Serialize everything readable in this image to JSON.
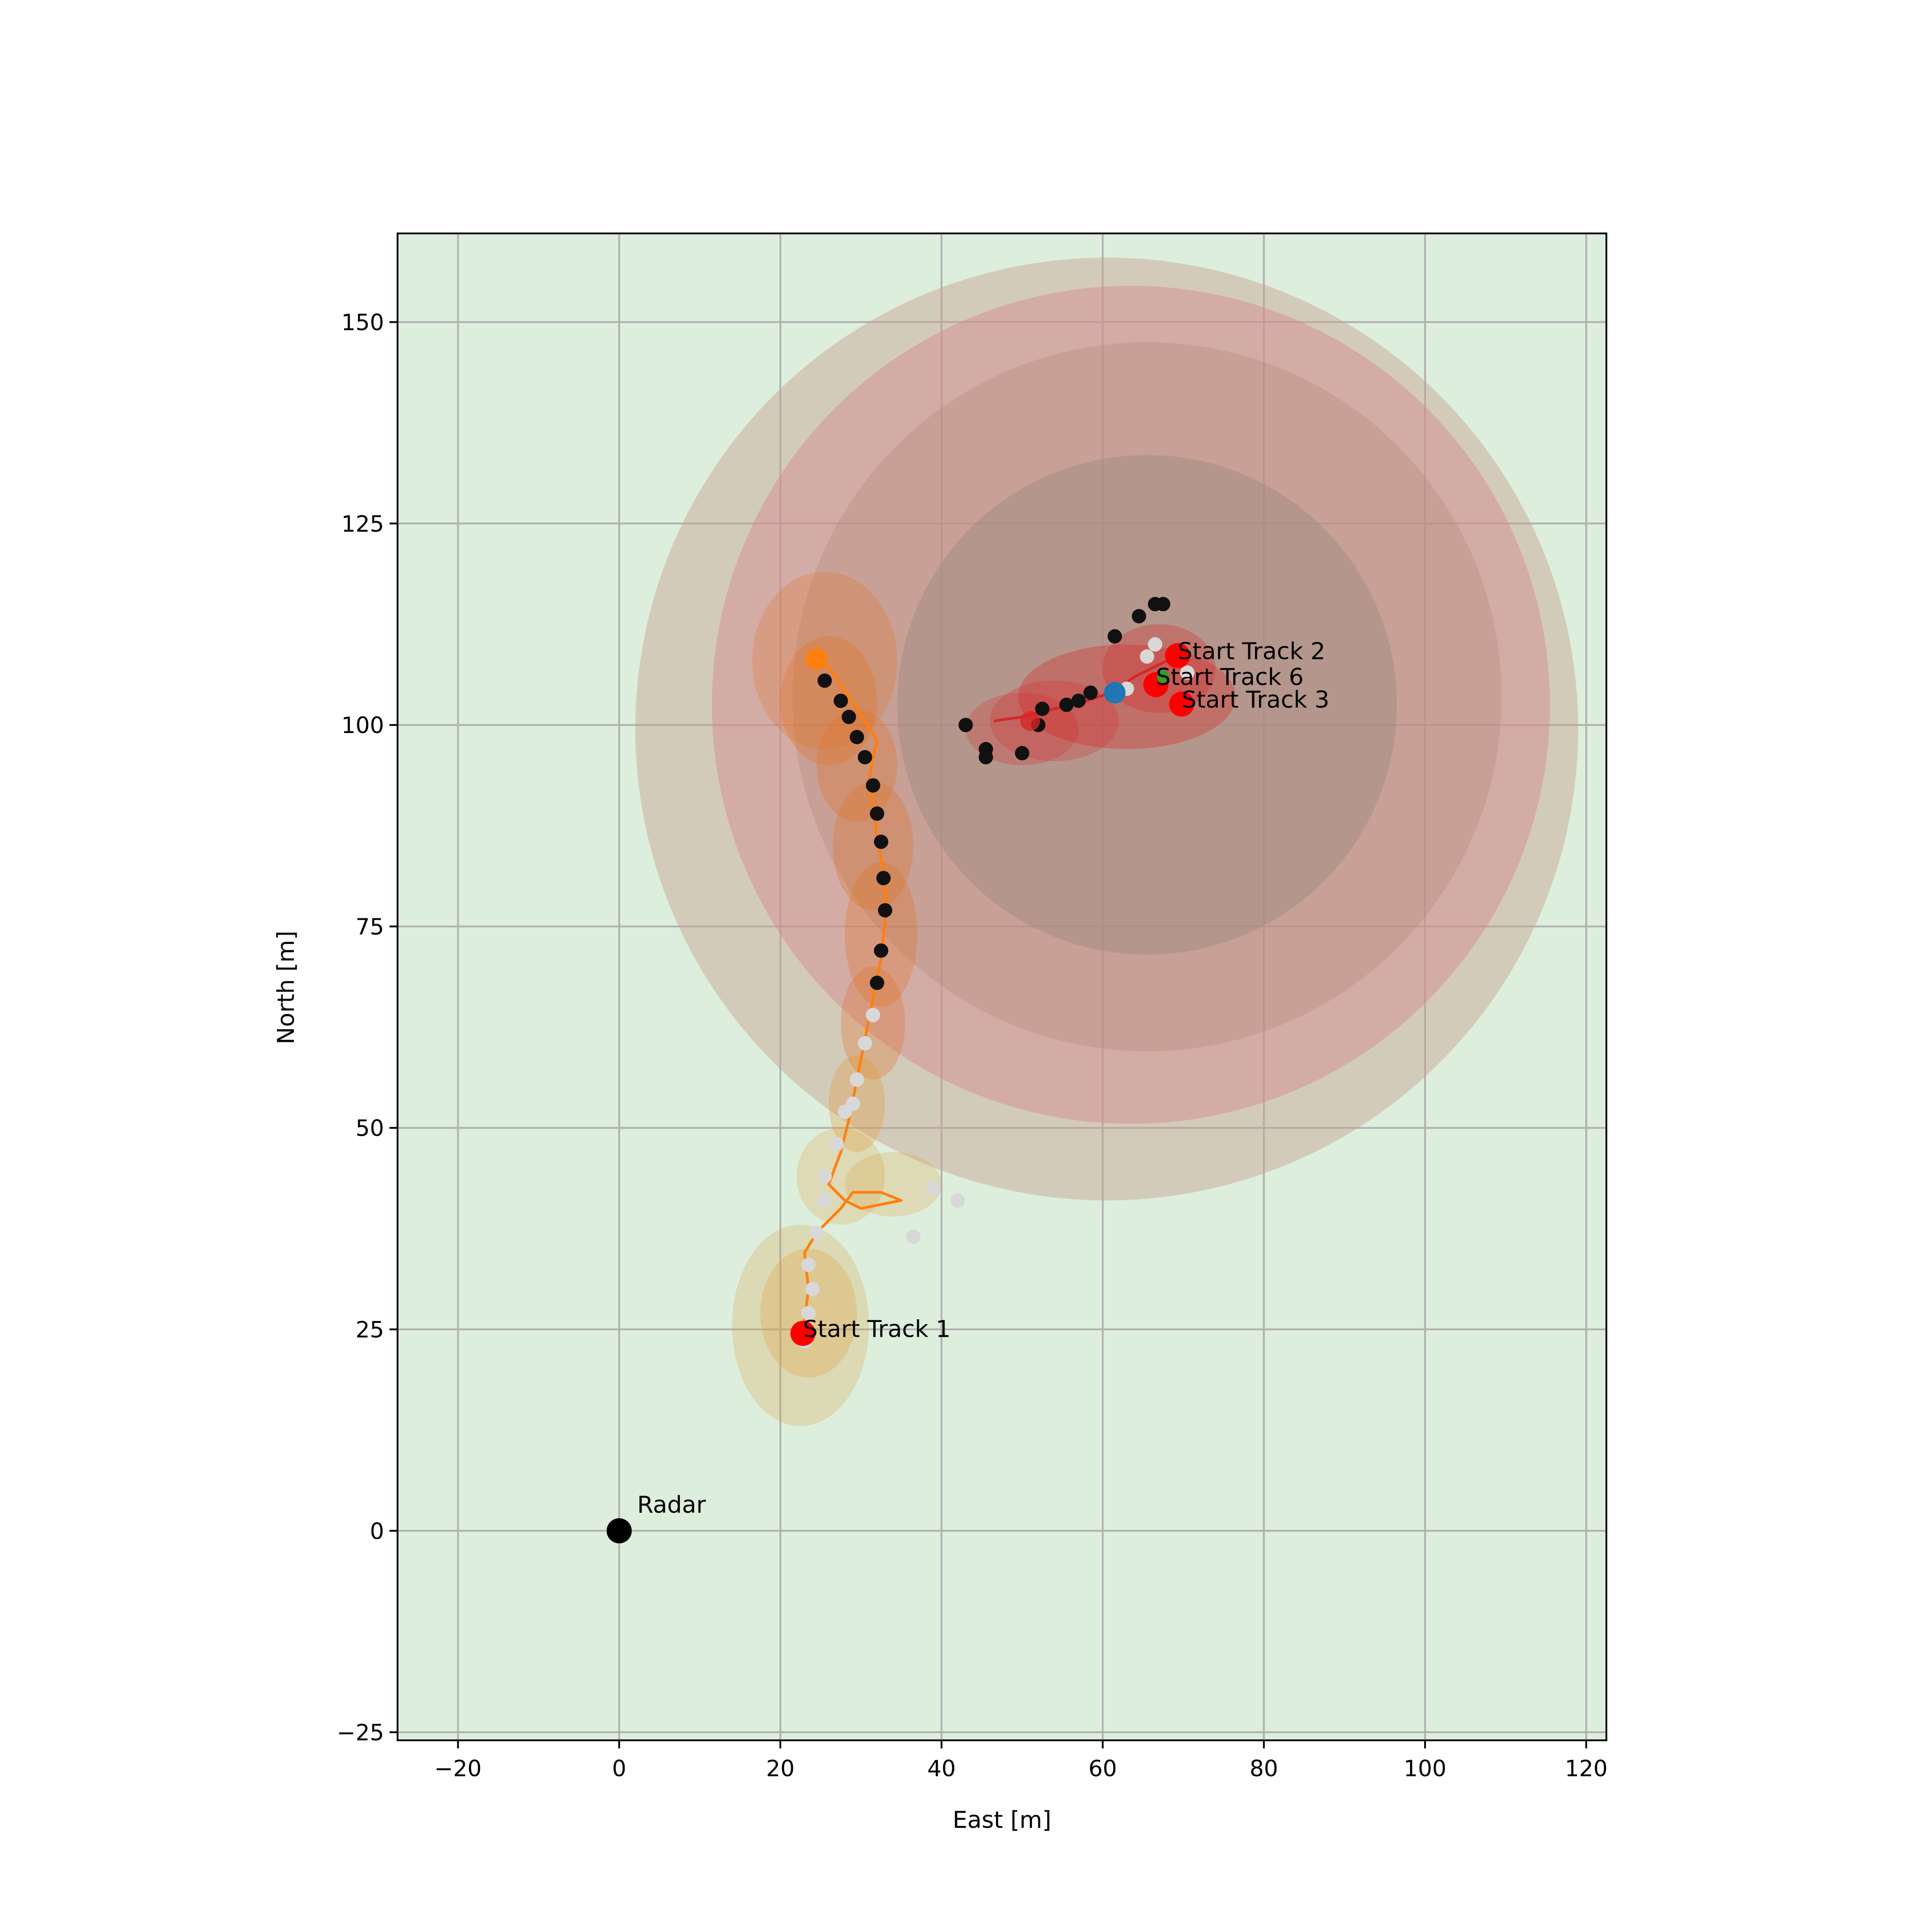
{
  "chart_data": {
    "type": "scatter",
    "title": "",
    "xlabel": "East [m]",
    "ylabel": "North [m]",
    "xlim": [
      -27.5,
      122.5
    ],
    "ylim": [
      -26,
      161
    ],
    "x_ticks": [
      -20,
      0,
      20,
      40,
      60,
      80,
      100,
      120
    ],
    "y_ticks": [
      -25,
      0,
      25,
      50,
      75,
      100,
      125,
      150
    ],
    "x_tick_labels": [
      "−20",
      "0",
      "20",
      "40",
      "60",
      "80",
      "100",
      "120"
    ],
    "y_tick_labels": [
      "−25",
      "0",
      "25",
      "50",
      "75",
      "100",
      "125",
      "150"
    ],
    "grid": true,
    "colors": {
      "background": "#ddeedd",
      "grid": "#b0b0b0",
      "track1": "#ff7f0e",
      "track2": "#d62728",
      "start_marker": "#ff0000",
      "radar": "#000000",
      "track6": "#1f77b4",
      "track6_start": "#2ca02c",
      "measurement_dark": "#111111",
      "measurement_light": "#d8d8d8"
    },
    "radar": {
      "x": 0,
      "y": 0,
      "label": "Radar"
    },
    "annotations": [
      {
        "text": "Start Track 1",
        "x": 22.8,
        "y": 24.5
      },
      {
        "text": "Start Track 2",
        "x": 69.3,
        "y": 108.6
      },
      {
        "text": "Start Track 6",
        "x": 66.6,
        "y": 105.4
      },
      {
        "text": "Start Track 3",
        "x": 69.8,
        "y": 102.6
      }
    ],
    "covariance_ellipses": [
      {
        "cx": 60.5,
        "cy": 99.5,
        "rx": 58.5,
        "ry": 58.5,
        "color": "#c8a090",
        "opacity": 0.45
      },
      {
        "cx": 63.5,
        "cy": 102.5,
        "rx": 52,
        "ry": 52,
        "color": "#d4878e",
        "opacity": 0.45
      },
      {
        "cx": 65.5,
        "cy": 103.5,
        "rx": 44,
        "ry": 44,
        "color": "#b38a78",
        "opacity": 0.35
      },
      {
        "cx": 65.5,
        "cy": 102.5,
        "rx": 31,
        "ry": 31,
        "color": "#9c8a80",
        "opacity": 0.45
      },
      {
        "cx": 63,
        "cy": 103.5,
        "rx": 13.5,
        "ry": 6.5,
        "color": "#d62728",
        "opacity": 0.35
      },
      {
        "cx": 54,
        "cy": 100.5,
        "rx": 8,
        "ry": 5,
        "color": "#d62728",
        "opacity": 0.25
      },
      {
        "cx": 50,
        "cy": 99.5,
        "rx": 7,
        "ry": 4.5,
        "color": "#d62728",
        "opacity": 0.25
      },
      {
        "cx": 67,
        "cy": 107,
        "rx": 7,
        "ry": 5.5,
        "color": "#d62728",
        "opacity": 0.3
      },
      {
        "cx": 25.5,
        "cy": 108,
        "rx": 9,
        "ry": 11,
        "color": "#e07020",
        "opacity": 0.25
      },
      {
        "cx": 26,
        "cy": 103,
        "rx": 6,
        "ry": 8,
        "color": "#e07020",
        "opacity": 0.3
      },
      {
        "cx": 29.5,
        "cy": 95,
        "rx": 5,
        "ry": 7,
        "color": "#e07020",
        "opacity": 0.3
      },
      {
        "cx": 31.5,
        "cy": 85,
        "rx": 5,
        "ry": 8,
        "color": "#e07020",
        "opacity": 0.3
      },
      {
        "cx": 32.5,
        "cy": 74,
        "rx": 4.5,
        "ry": 9,
        "color": "#e07020",
        "opacity": 0.3
      },
      {
        "cx": 31.5,
        "cy": 63,
        "rx": 4,
        "ry": 7,
        "color": "#e07020",
        "opacity": 0.3
      },
      {
        "cx": 29.5,
        "cy": 53,
        "rx": 3.5,
        "ry": 6,
        "color": "#e69530",
        "opacity": 0.3
      },
      {
        "cx": 27.5,
        "cy": 44,
        "rx": 5.5,
        "ry": 6,
        "color": "#e0a040",
        "opacity": 0.25
      },
      {
        "cx": 34,
        "cy": 43,
        "rx": 6,
        "ry": 4,
        "color": "#e0a040",
        "opacity": 0.25
      },
      {
        "cx": 22.5,
        "cy": 25.5,
        "rx": 8.5,
        "ry": 12.5,
        "color": "#d8a040",
        "opacity": 0.25
      },
      {
        "cx": 23.5,
        "cy": 27,
        "rx": 6,
        "ry": 8,
        "color": "#e0a040",
        "opacity": 0.3
      }
    ],
    "series": [
      {
        "name": "Track 1",
        "color": "#ff7f0e",
        "x": [
          22.8,
          23.5,
          23.0,
          24.5,
          27.5,
          29.0,
          32.5,
          35.0,
          30.0,
          28.0,
          26.0,
          27.5,
          28.5,
          29.5,
          30.5,
          31.5,
          32.5,
          33.0,
          33.0,
          32.0,
          31.5,
          31.0,
          31.5,
          32.0,
          31.5,
          30.5,
          29.5,
          28.5,
          27.5,
          26.5,
          25.5,
          24.5
        ],
        "y": [
          24.5,
          30.0,
          34.5,
          37.0,
          40.0,
          42.0,
          42.0,
          41.0,
          40.0,
          41.0,
          43.0,
          47.0,
          51.0,
          56.0,
          61.0,
          66.0,
          71.0,
          76.0,
          81.0,
          86.0,
          90.0,
          93.0,
          96.0,
          98.0,
          99.0,
          100.5,
          102.0,
          103.5,
          105.0,
          106.5,
          107.5,
          108.2
        ]
      },
      {
        "name": "Track 2",
        "color": "#d62728",
        "x": [
          69.3,
          67.0,
          64.0,
          61.0,
          58.0,
          54.0,
          50.0,
          46.5
        ],
        "y": [
          108.6,
          107.5,
          106.0,
          104.0,
          103.0,
          102.0,
          101.0,
          100.5
        ]
      }
    ],
    "measurements_dark": [
      [
        24.8,
        108.0
      ],
      [
        25.5,
        105.5
      ],
      [
        27.5,
        103.0
      ],
      [
        28.5,
        101.0
      ],
      [
        29.5,
        98.5
      ],
      [
        30.5,
        96.0
      ],
      [
        31.5,
        92.5
      ],
      [
        32.0,
        89.0
      ],
      [
        32.5,
        85.5
      ],
      [
        32.8,
        81.0
      ],
      [
        33.0,
        77.0
      ],
      [
        32.5,
        72.0
      ],
      [
        32.0,
        68.0
      ],
      [
        43.0,
        100.0
      ],
      [
        45.5,
        97.0
      ],
      [
        45.5,
        96.0
      ],
      [
        50.0,
        96.5
      ],
      [
        52.0,
        100.0
      ],
      [
        52.5,
        102.0
      ],
      [
        55.5,
        102.5
      ],
      [
        57.0,
        103.0
      ],
      [
        58.5,
        104.0
      ],
      [
        61.5,
        111.0
      ],
      [
        64.5,
        113.5
      ],
      [
        66.5,
        115.0
      ],
      [
        67.5,
        115.0
      ]
    ],
    "measurements_light": [
      [
        31.5,
        64.0
      ],
      [
        30.5,
        60.5
      ],
      [
        29.5,
        56.0
      ],
      [
        29.0,
        53.0
      ],
      [
        28.0,
        52.0
      ],
      [
        27.0,
        48.0
      ],
      [
        25.5,
        44.0
      ],
      [
        25.5,
        41.0
      ],
      [
        24.5,
        37.0
      ],
      [
        23.5,
        33.0
      ],
      [
        24.0,
        30.0
      ],
      [
        23.5,
        27.0
      ],
      [
        23.0,
        23.5
      ],
      [
        36.5,
        36.5
      ],
      [
        42.0,
        41.0
      ],
      [
        39.0,
        42.5
      ],
      [
        65.5,
        108.5
      ],
      [
        66.5,
        110.0
      ],
      [
        70.5,
        106.5
      ],
      [
        63.0,
        104.5
      ]
    ],
    "track6_current": {
      "x": 61.5,
      "y": 104.0
    },
    "track2_current": {
      "x": 51.0,
      "y": 100.5
    },
    "track1_current": {
      "x": 24.5,
      "y": 108.2
    },
    "start_points": [
      {
        "x": 22.8,
        "y": 24.5
      },
      {
        "x": 69.3,
        "y": 108.6
      },
      {
        "x": 66.6,
        "y": 105.0
      },
      {
        "x": 69.8,
        "y": 102.6
      }
    ],
    "track6_start": {
      "x": 67.5,
      "y": 106.0
    }
  }
}
